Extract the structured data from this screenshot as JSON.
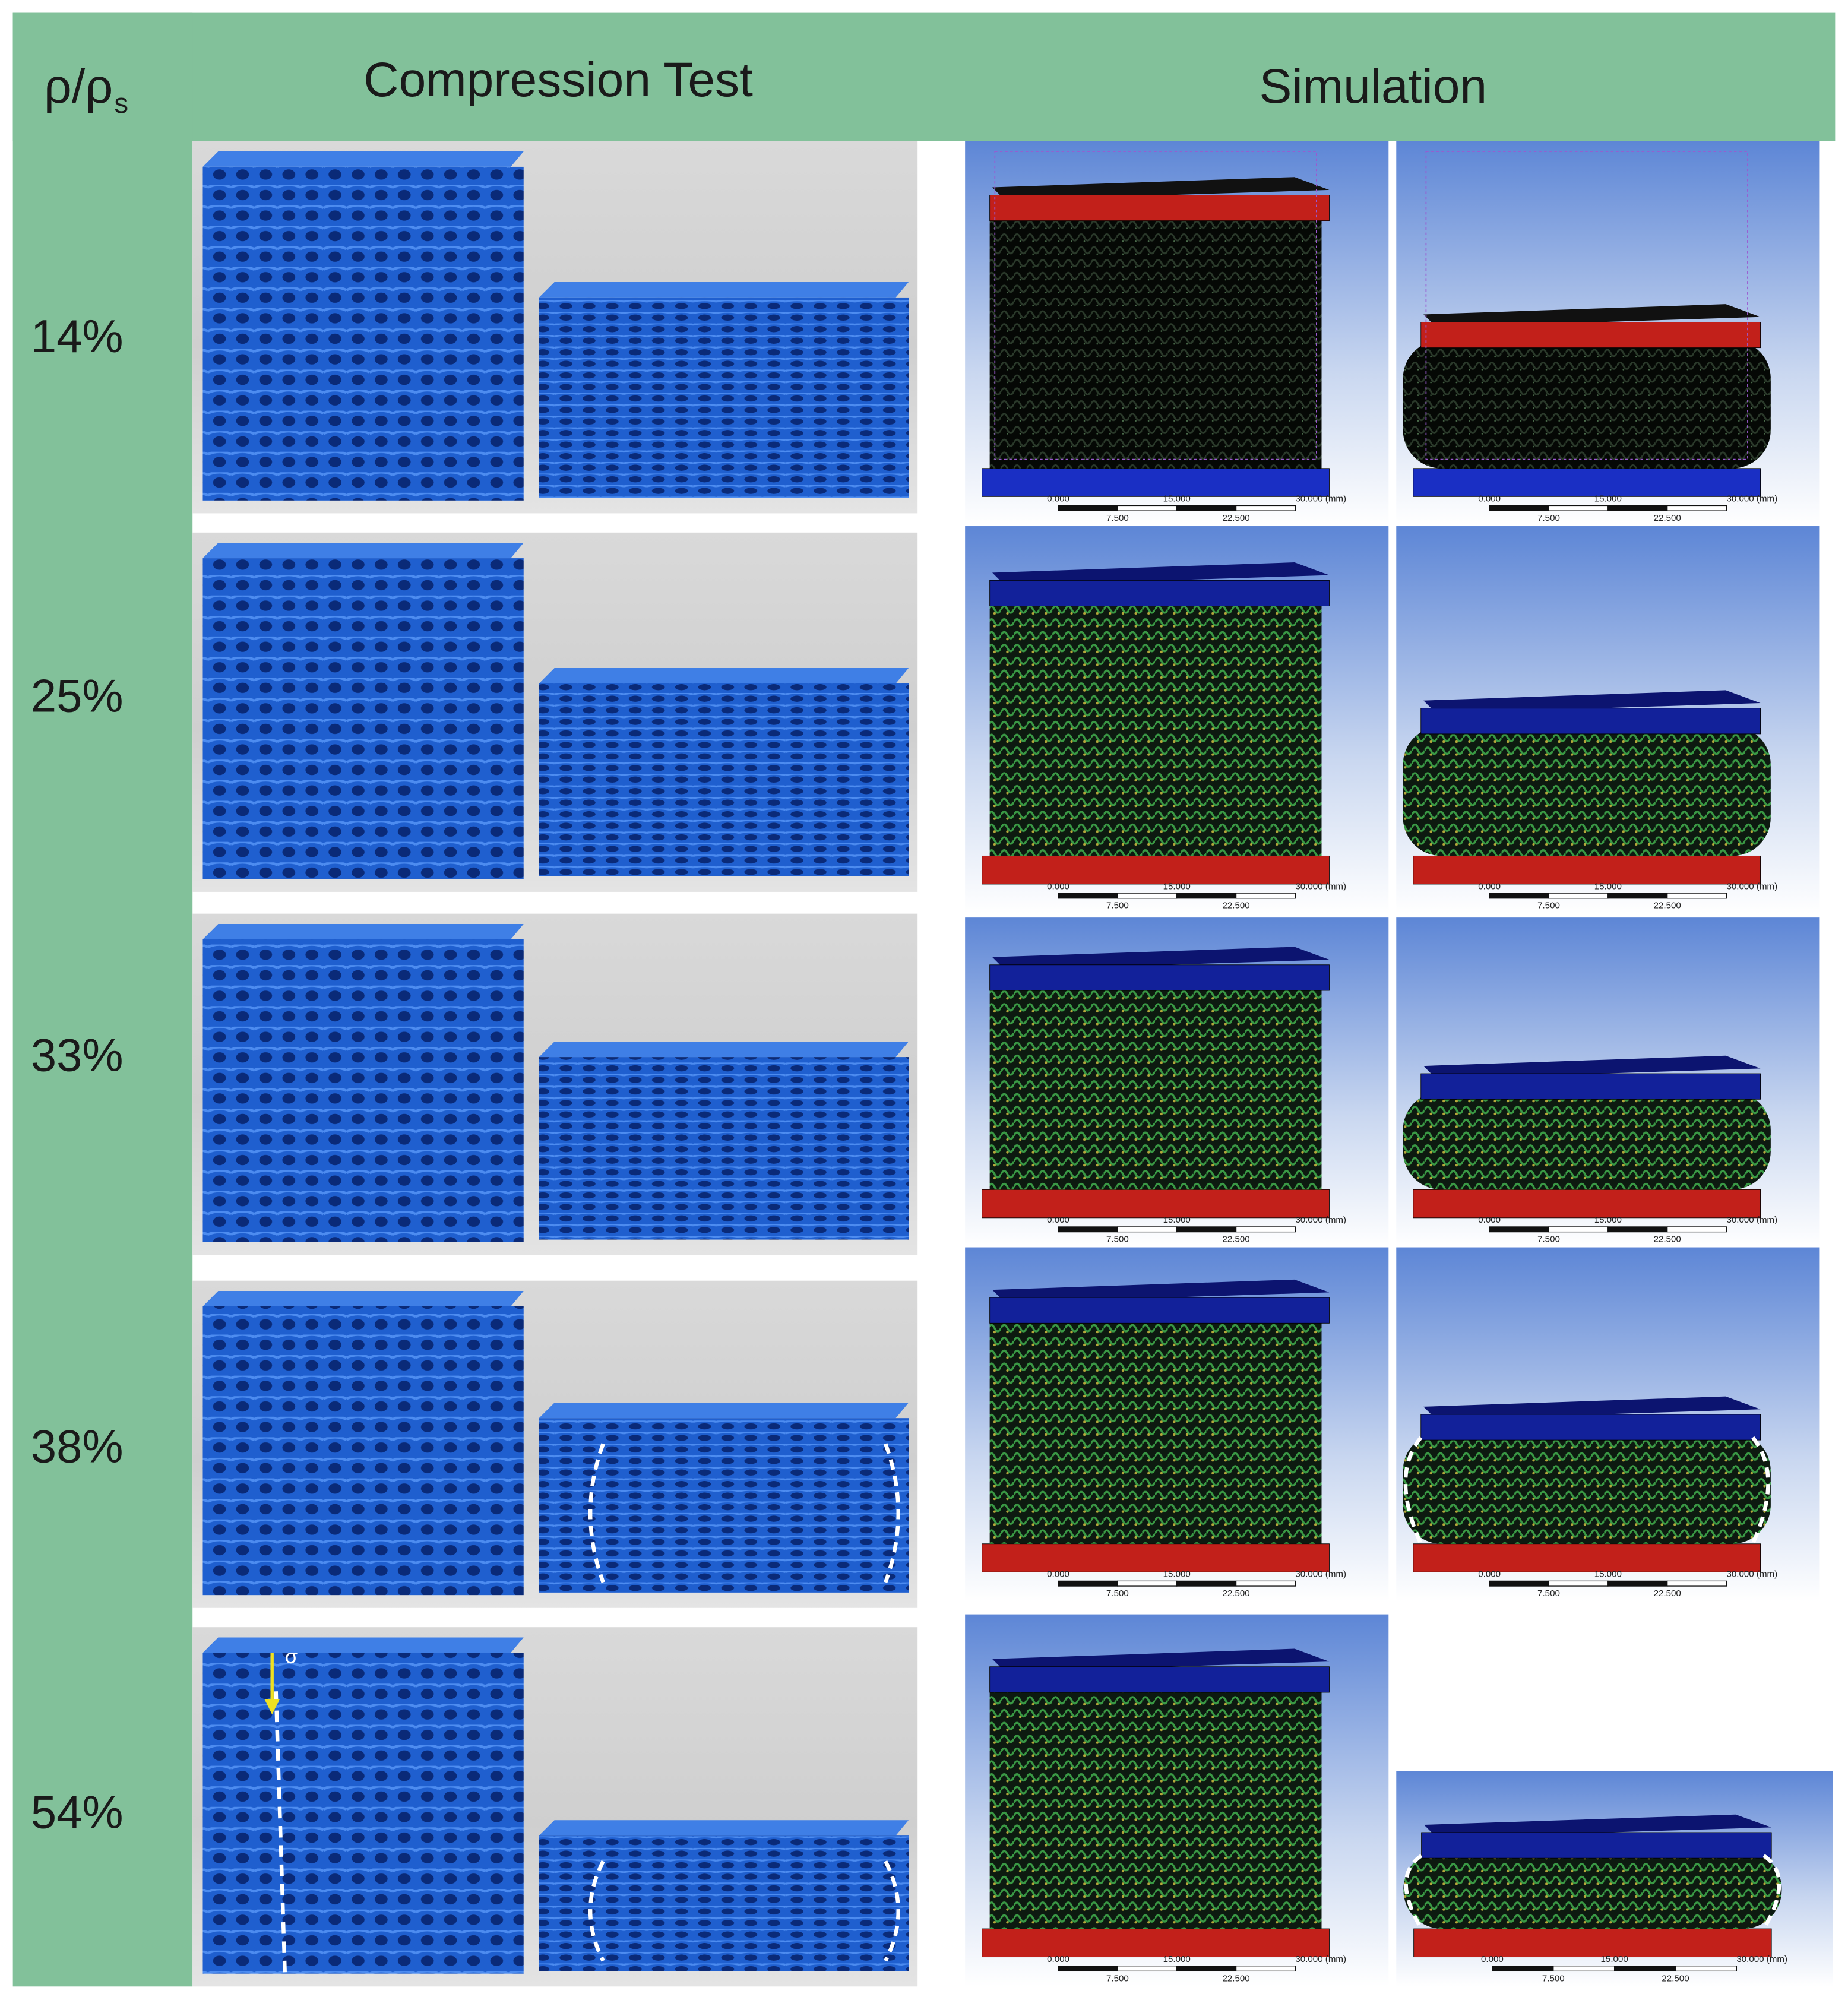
{
  "header": {
    "density_symbol": "ρ/ρ",
    "density_subscript": "s",
    "compression_title": "Compression Test",
    "simulation_title": "Simulation"
  },
  "rows": [
    {
      "density": "14%"
    },
    {
      "density": "25%"
    },
    {
      "density": "33%"
    },
    {
      "density": "38%"
    },
    {
      "density": "54%"
    }
  ],
  "scale_bar": {
    "top_labels": [
      "0.000",
      "15.000",
      "30.000 (mm)"
    ],
    "bottom_labels": [
      "7.500",
      "22.500"
    ]
  },
  "stress_symbol": "σ"
}
